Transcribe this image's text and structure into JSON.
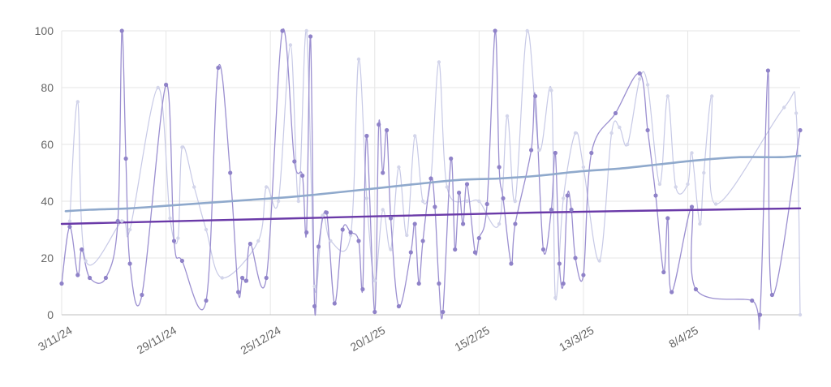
{
  "chart_data": {
    "type": "line",
    "title": "",
    "xlabel": "",
    "ylabel": "",
    "ylim": [
      0,
      100
    ],
    "yticks": [
      0,
      20,
      40,
      60,
      80,
      100
    ],
    "xlim": [
      "2024-11-03",
      "2025-05-06"
    ],
    "x_ticks": [
      {
        "date": "2024-11-03",
        "label": "3/11/24"
      },
      {
        "date": "2024-11-29",
        "label": "29/11/24"
      },
      {
        "date": "2024-12-25",
        "label": "25/12/24"
      },
      {
        "date": "2025-01-20",
        "label": "20/1/25"
      },
      {
        "date": "2025-02-15",
        "label": "15/2/25"
      },
      {
        "date": "2025-03-13",
        "label": "13/3/25"
      },
      {
        "date": "2025-04-08",
        "label": "8/4/25"
      }
    ],
    "grid": true,
    "legend": "none",
    "colors": {
      "series_dark": "#9b8fd0",
      "series_light": "#c7c9e6",
      "trend_blue": "#8fa9cc",
      "trend_purple": "#6a3aa8",
      "grid": "#e6e6e6",
      "axis": "#bfbfbf"
    },
    "series": [
      {
        "style": "dark",
        "points": [
          [
            "2024-11-03",
            11
          ],
          [
            "2024-11-05",
            31
          ],
          [
            "2024-11-07",
            14
          ],
          [
            "2024-11-08",
            23
          ],
          [
            "2024-11-10",
            13
          ],
          [
            "2024-11-14",
            13
          ],
          [
            "2024-11-17",
            33
          ],
          [
            "2024-11-18",
            100
          ],
          [
            "2024-11-19",
            55
          ],
          [
            "2024-11-20",
            18
          ],
          [
            "2024-11-23",
            7
          ],
          [
            "2024-11-29",
            81
          ],
          [
            "2024-12-01",
            26
          ],
          [
            "2024-12-03",
            19
          ],
          [
            "2024-12-09",
            5
          ],
          [
            "2024-12-12",
            87
          ],
          [
            "2024-12-15",
            50
          ],
          [
            "2024-12-17",
            8
          ],
          [
            "2024-12-18",
            13
          ],
          [
            "2024-12-19",
            12
          ],
          [
            "2024-12-20",
            25
          ],
          [
            "2024-12-24",
            13
          ],
          [
            "2024-12-28",
            100
          ],
          [
            "2024-12-31",
            54
          ],
          [
            "2025-01-02",
            49
          ],
          [
            "2025-01-03",
            29
          ],
          [
            "2025-01-04",
            98
          ],
          [
            "2025-01-05",
            3
          ],
          [
            "2025-01-06",
            24
          ],
          [
            "2025-01-08",
            36
          ],
          [
            "2025-01-10",
            4
          ],
          [
            "2025-01-12",
            30
          ],
          [
            "2025-01-14",
            29
          ],
          [
            "2025-01-16",
            26
          ],
          [
            "2025-01-17",
            9
          ],
          [
            "2025-01-18",
            63
          ],
          [
            "2025-01-20",
            1
          ],
          [
            "2025-01-21",
            67
          ],
          [
            "2025-01-22",
            50
          ],
          [
            "2025-01-23",
            65
          ],
          [
            "2025-01-24",
            34
          ],
          [
            "2025-01-26",
            3
          ],
          [
            "2025-01-29",
            22
          ],
          [
            "2025-01-30",
            32
          ],
          [
            "2025-01-31",
            11
          ],
          [
            "2025-02-01",
            26
          ],
          [
            "2025-02-03",
            48
          ],
          [
            "2025-02-04",
            38
          ],
          [
            "2025-02-05",
            11
          ],
          [
            "2025-02-06",
            1
          ],
          [
            "2025-02-08",
            55
          ],
          [
            "2025-02-09",
            23
          ],
          [
            "2025-02-10",
            43
          ],
          [
            "2025-02-11",
            32
          ],
          [
            "2025-02-12",
            46
          ],
          [
            "2025-02-14",
            22
          ],
          [
            "2025-02-15",
            27
          ],
          [
            "2025-02-17",
            39
          ],
          [
            "2025-02-19",
            100
          ],
          [
            "2025-02-20",
            52
          ],
          [
            "2025-02-21",
            41
          ],
          [
            "2025-02-23",
            18
          ],
          [
            "2025-02-24",
            32
          ],
          [
            "2025-02-28",
            58
          ],
          [
            "2025-03-01",
            77
          ],
          [
            "2025-03-03",
            23
          ],
          [
            "2025-03-05",
            37
          ],
          [
            "2025-03-06",
            57
          ],
          [
            "2025-03-07",
            18
          ],
          [
            "2025-03-08",
            11
          ],
          [
            "2025-03-09",
            42
          ],
          [
            "2025-03-10",
            37
          ],
          [
            "2025-03-11",
            20
          ],
          [
            "2025-03-13",
            14
          ],
          [
            "2025-03-15",
            57
          ],
          [
            "2025-03-21",
            71
          ],
          [
            "2025-03-27",
            85
          ],
          [
            "2025-03-29",
            65
          ],
          [
            "2025-03-31",
            42
          ],
          [
            "2025-04-02",
            15
          ],
          [
            "2025-04-03",
            34
          ],
          [
            "2025-04-04",
            8
          ],
          [
            "2025-04-09",
            38
          ],
          [
            "2025-04-10",
            9
          ],
          [
            "2025-04-24",
            5
          ],
          [
            "2025-04-26",
            0
          ],
          [
            "2025-04-28",
            86
          ],
          [
            "2025-04-29",
            7
          ],
          [
            "2025-05-06",
            65
          ]
        ]
      },
      {
        "style": "light",
        "points": [
          [
            "2024-11-05",
            33
          ],
          [
            "2024-11-07",
            75
          ],
          [
            "2024-11-09",
            19
          ],
          [
            "2024-11-18",
            33
          ],
          [
            "2024-11-20",
            30
          ],
          [
            "2024-11-27",
            80
          ],
          [
            "2024-11-30",
            34
          ],
          [
            "2024-12-02",
            27
          ],
          [
            "2024-12-03",
            59
          ],
          [
            "2024-12-06",
            45
          ],
          [
            "2024-12-09",
            30
          ],
          [
            "2024-12-13",
            13
          ],
          [
            "2024-12-22",
            26
          ],
          [
            "2024-12-24",
            45
          ],
          [
            "2024-12-27",
            40
          ],
          [
            "2024-12-30",
            95
          ],
          [
            "2025-01-01",
            40
          ],
          [
            "2025-01-03",
            100
          ],
          [
            "2025-01-05",
            10
          ],
          [
            "2025-01-07",
            35
          ],
          [
            "2025-01-09",
            26
          ],
          [
            "2025-01-14",
            28
          ],
          [
            "2025-01-16",
            90
          ],
          [
            "2025-01-18",
            41
          ],
          [
            "2025-01-20",
            12
          ],
          [
            "2025-01-22",
            37
          ],
          [
            "2025-01-24",
            23
          ],
          [
            "2025-01-26",
            52
          ],
          [
            "2025-01-28",
            28
          ],
          [
            "2025-01-30",
            63
          ],
          [
            "2025-02-01",
            40
          ],
          [
            "2025-02-03",
            48
          ],
          [
            "2025-02-05",
            89
          ],
          [
            "2025-02-07",
            45
          ],
          [
            "2025-02-12",
            40
          ],
          [
            "2025-02-15",
            40
          ],
          [
            "2025-02-20",
            32
          ],
          [
            "2025-02-22",
            70
          ],
          [
            "2025-02-24",
            40
          ],
          [
            "2025-02-27",
            100
          ],
          [
            "2025-03-02",
            58
          ],
          [
            "2025-03-05",
            79
          ],
          [
            "2025-03-06",
            6
          ],
          [
            "2025-03-08",
            41
          ],
          [
            "2025-03-11",
            64
          ],
          [
            "2025-03-13",
            52
          ],
          [
            "2025-03-17",
            19
          ],
          [
            "2025-03-20",
            64
          ],
          [
            "2025-03-22",
            66
          ],
          [
            "2025-03-24",
            60
          ],
          [
            "2025-03-27",
            83
          ],
          [
            "2025-03-29",
            81
          ],
          [
            "2025-04-01",
            46
          ],
          [
            "2025-04-03",
            77
          ],
          [
            "2025-04-05",
            45
          ],
          [
            "2025-04-08",
            46
          ],
          [
            "2025-04-09",
            57
          ],
          [
            "2025-04-11",
            32
          ],
          [
            "2025-04-12",
            50
          ],
          [
            "2025-04-14",
            77
          ],
          [
            "2025-04-15",
            39
          ],
          [
            "2025-05-02",
            73
          ],
          [
            "2025-05-05",
            71
          ],
          [
            "2025-05-06",
            0
          ]
        ]
      },
      {
        "style": "trend_blue",
        "points": [
          [
            "2024-11-04",
            36.5
          ],
          [
            "2024-11-10",
            37
          ],
          [
            "2024-11-20",
            37.5
          ],
          [
            "2024-11-30",
            38.5
          ],
          [
            "2024-12-10",
            39.5
          ],
          [
            "2024-12-20",
            40.5
          ],
          [
            "2024-12-30",
            41.5
          ],
          [
            "2025-01-10",
            43
          ],
          [
            "2025-01-20",
            44.5
          ],
          [
            "2025-01-30",
            46
          ],
          [
            "2025-02-10",
            47.5
          ],
          [
            "2025-02-20",
            48
          ],
          [
            "2025-03-02",
            49
          ],
          [
            "2025-03-12",
            50.5
          ],
          [
            "2025-03-22",
            51.5
          ],
          [
            "2025-04-01",
            53
          ],
          [
            "2025-04-11",
            54.5
          ],
          [
            "2025-04-21",
            55.5
          ],
          [
            "2025-05-01",
            55.5
          ],
          [
            "2025-05-06",
            56
          ]
        ]
      },
      {
        "style": "trend_purple",
        "points": [
          [
            "2024-11-03",
            32
          ],
          [
            "2025-01-01",
            34
          ],
          [
            "2025-03-01",
            36
          ],
          [
            "2025-05-06",
            37.5
          ]
        ]
      }
    ]
  }
}
